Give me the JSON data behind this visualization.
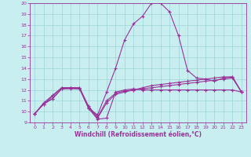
{
  "xlabel": "Windchill (Refroidissement éolien,°C)",
  "background_color": "#c8eef0",
  "grid_color": "#9ed4d8",
  "xlim": [
    -0.5,
    23.5
  ],
  "ylim": [
    9,
    20
  ],
  "x_ticks": [
    0,
    1,
    2,
    3,
    4,
    5,
    6,
    7,
    8,
    9,
    10,
    11,
    12,
    13,
    14,
    15,
    16,
    17,
    18,
    19,
    20,
    21,
    22,
    23
  ],
  "y_ticks": [
    9,
    10,
    11,
    12,
    13,
    14,
    15,
    16,
    17,
    18,
    19,
    20
  ],
  "series": [
    {
      "x": [
        0,
        1,
        2,
        3,
        4,
        5,
        6,
        7,
        8,
        9,
        10,
        11,
        12,
        13,
        14,
        15,
        16,
        17,
        18,
        19,
        20,
        21,
        22,
        23
      ],
      "y": [
        9.8,
        10.7,
        11.2,
        12.1,
        12.1,
        12.1,
        10.3,
        9.3,
        9.4,
        11.8,
        12.0,
        12.1,
        12.0,
        12.0,
        12.0,
        12.0,
        12.0,
        12.0,
        12.0,
        12.0,
        12.0,
        12.0,
        12.0,
        11.8
      ],
      "marker": "+"
    },
    {
      "x": [
        0,
        1,
        2,
        3,
        4,
        5,
        6,
        7,
        8,
        9,
        10,
        11,
        12,
        13,
        14,
        15,
        16,
        17,
        18,
        19,
        20,
        21,
        22,
        23
      ],
      "y": [
        9.8,
        10.7,
        11.2,
        12.1,
        12.2,
        12.2,
        10.3,
        9.7,
        11.8,
        14.0,
        16.6,
        18.1,
        18.8,
        20.0,
        20.0,
        19.2,
        17.0,
        13.8,
        13.1,
        13.0,
        12.8,
        13.1,
        13.2,
        11.8
      ],
      "marker": "+"
    },
    {
      "x": [
        0,
        1,
        2,
        3,
        4,
        5,
        6,
        7,
        8,
        9,
        10,
        11,
        12,
        13,
        14,
        15,
        16,
        17,
        18,
        19,
        20,
        21,
        22,
        23
      ],
      "y": [
        9.8,
        10.7,
        11.4,
        12.2,
        12.2,
        12.2,
        10.5,
        9.5,
        11.0,
        11.7,
        11.9,
        12.0,
        12.1,
        12.2,
        12.3,
        12.4,
        12.5,
        12.6,
        12.7,
        12.8,
        12.9,
        13.0,
        13.1,
        11.8
      ],
      "marker": "+"
    },
    {
      "x": [
        0,
        1,
        2,
        3,
        4,
        5,
        6,
        7,
        8,
        9,
        10,
        11,
        12,
        13,
        14,
        15,
        16,
        17,
        18,
        19,
        20,
        21,
        22,
        23
      ],
      "y": [
        9.8,
        10.8,
        11.5,
        12.2,
        12.2,
        12.1,
        10.4,
        9.4,
        10.8,
        11.6,
        11.8,
        12.0,
        12.2,
        12.4,
        12.5,
        12.6,
        12.7,
        12.8,
        12.9,
        13.0,
        13.1,
        13.2,
        13.2,
        11.8
      ],
      "marker": "+"
    }
  ],
  "line_color": "#993399",
  "linewidth": 0.8,
  "markersize": 3.0,
  "tick_fontsize": 4.5,
  "xlabel_fontsize": 5.5
}
